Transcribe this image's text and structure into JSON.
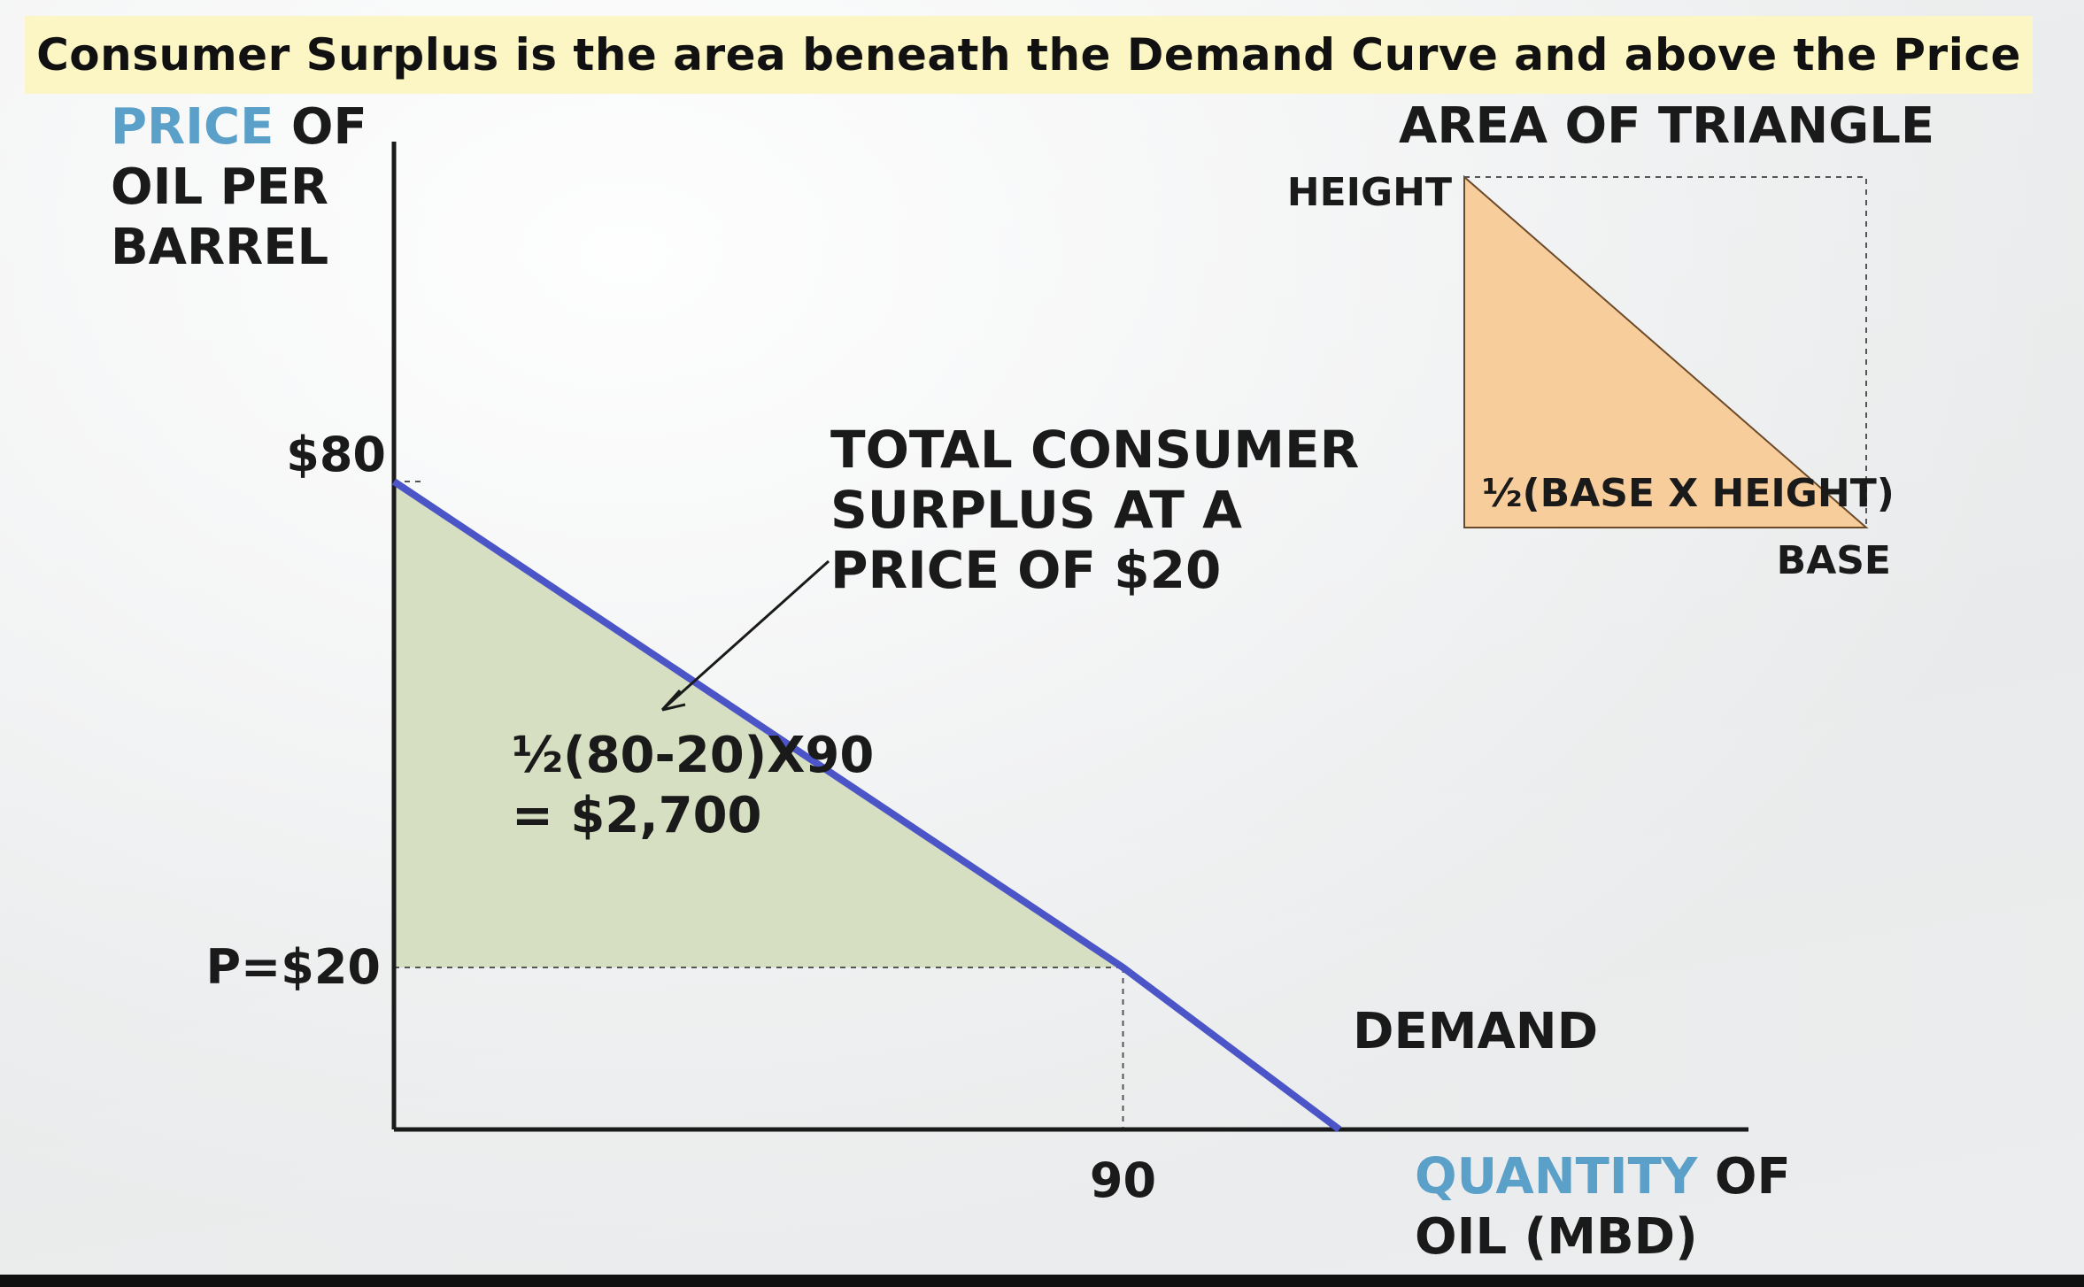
{
  "banner": {
    "text": "Consumer Surplus is the area beneath the Demand Curve and above the Price"
  },
  "axes": {
    "y_label": {
      "highlight": "PRICE",
      "rest_line1": " OF",
      "line2": "OIL PER",
      "line3": "BARREL"
    },
    "x_label": {
      "highlight": "QUANTITY",
      "rest_line1": " OF",
      "line2": "OIL (MBD)"
    }
  },
  "chart_data": {
    "type": "area",
    "title": "Consumer Surplus is the area beneath the Demand Curve and above the Price",
    "xlabel": "QUANTITY OF OIL (MBD)",
    "ylabel": "PRICE OF OIL PER BARREL",
    "series": [
      {
        "name": "DEMAND",
        "x": [
          0,
          90,
          116.7
        ],
        "y": [
          80,
          20,
          0
        ]
      }
    ],
    "price_line": {
      "label": "P=$20",
      "value": 20
    },
    "y_tick": {
      "label": "$80",
      "value": 80
    },
    "x_tick": {
      "label": "90",
      "value": 90
    },
    "xlim": [
      0,
      150
    ],
    "ylim": [
      0,
      90
    ],
    "grid": false,
    "shaded_region": {
      "label": "TOTAL CONSUMER SURPLUS AT A PRICE OF $20",
      "label_lines": [
        "TOTAL CONSUMER",
        "SURPLUS AT A",
        "PRICE OF $20"
      ],
      "formula_lines": [
        "½(80-20)X90",
        "= $2,700"
      ]
    },
    "colors": {
      "demand": "#4b55c8",
      "surplus": "#d6dfc2",
      "triangle": "#f8cd9c"
    }
  },
  "inset": {
    "title": "AREA OF TRIANGLE",
    "height_label": "HEIGHT",
    "base_label": "BASE",
    "formula": "½(BASE X HEIGHT)"
  }
}
